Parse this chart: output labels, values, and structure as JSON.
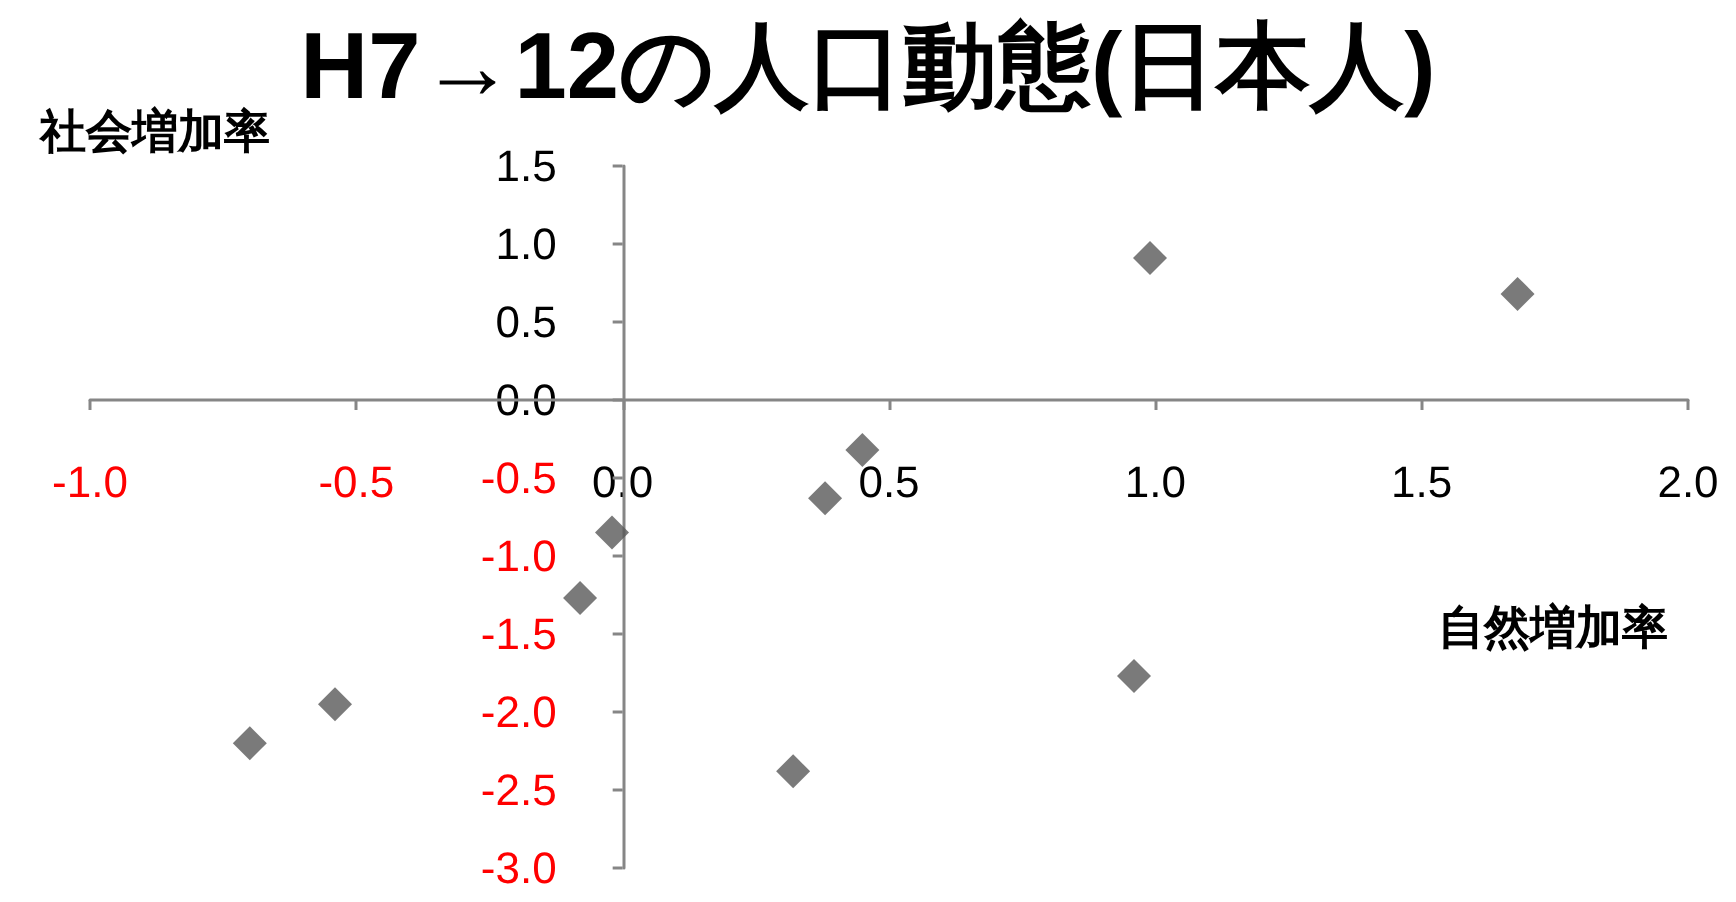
{
  "chart_data": {
    "type": "scatter",
    "title": "H7→12の人口動態(日本人)",
    "xlabel": "自然増加率",
    "ylabel": "社会増加率",
    "x": [
      0.99,
      1.68,
      0.45,
      0.38,
      -0.02,
      -0.08,
      0.96,
      0.32,
      -0.54,
      -0.7
    ],
    "series": [
      {
        "color": "#595959",
        "values": [
          0.91,
          0.68,
          -0.32,
          -0.63,
          -0.85,
          -1.27,
          -1.77,
          -2.38,
          -1.95,
          -2.2
        ]
      }
    ],
    "xlim": [
      -1.0,
      2.0
    ],
    "xticks": [
      {
        "value": -1.0,
        "label": "-1.0"
      },
      {
        "value": -0.5,
        "label": "-0.5"
      },
      {
        "value": 0,
        "label": "0.0"
      },
      {
        "value": 0.5,
        "label": "0.5"
      },
      {
        "value": 1.0,
        "label": "1.0"
      },
      {
        "value": 1.5,
        "label": "1.5"
      },
      {
        "value": 2.0,
        "label": "2.0"
      }
    ],
    "ylim": [
      -3.0,
      1.5
    ],
    "yticks": [
      {
        "value": -3.0,
        "label": "-3.0"
      },
      {
        "value": -2.5,
        "label": "-2.5"
      },
      {
        "value": -2.0,
        "label": "-2.0"
      },
      {
        "value": -1.5,
        "label": "-1.5"
      },
      {
        "value": -1.0,
        "label": "-1.0"
      },
      {
        "value": -0.5,
        "label": "-0.5"
      },
      {
        "value": 0,
        "label": "0.0"
      },
      {
        "value": 0.5,
        "label": "0.5"
      },
      {
        "value": 1.0,
        "label": "1.0"
      },
      {
        "value": 1.5,
        "label": "1.5"
      }
    ],
    "marker": "diamond",
    "grid": false
  }
}
